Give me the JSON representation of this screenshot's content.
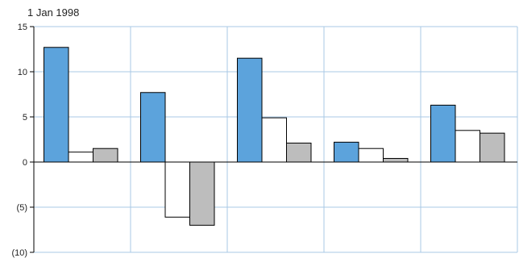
{
  "chart_data": {
    "type": "bar",
    "title": "1 Jan 1998",
    "xlabel": "",
    "ylabel": "",
    "ylim": [
      -10,
      15
    ],
    "yticks": [
      15,
      10,
      5,
      0,
      -5,
      -10
    ],
    "ytick_labels": [
      "15",
      "10",
      "5",
      "0",
      "(5)",
      "(10)"
    ],
    "grid": true,
    "categories": [
      "",
      "",
      "",
      "",
      ""
    ],
    "series": [
      {
        "color": "#5ca3dc",
        "values": [
          12.7,
          7.7,
          11.5,
          2.2,
          6.3
        ]
      },
      {
        "color": "#ffffff",
        "values": [
          1.1,
          -6.1,
          4.9,
          1.5,
          3.5
        ]
      },
      {
        "color": "#bdbdbd",
        "values": [
          1.5,
          -7.0,
          2.1,
          0.4,
          3.2
        ]
      }
    ]
  }
}
